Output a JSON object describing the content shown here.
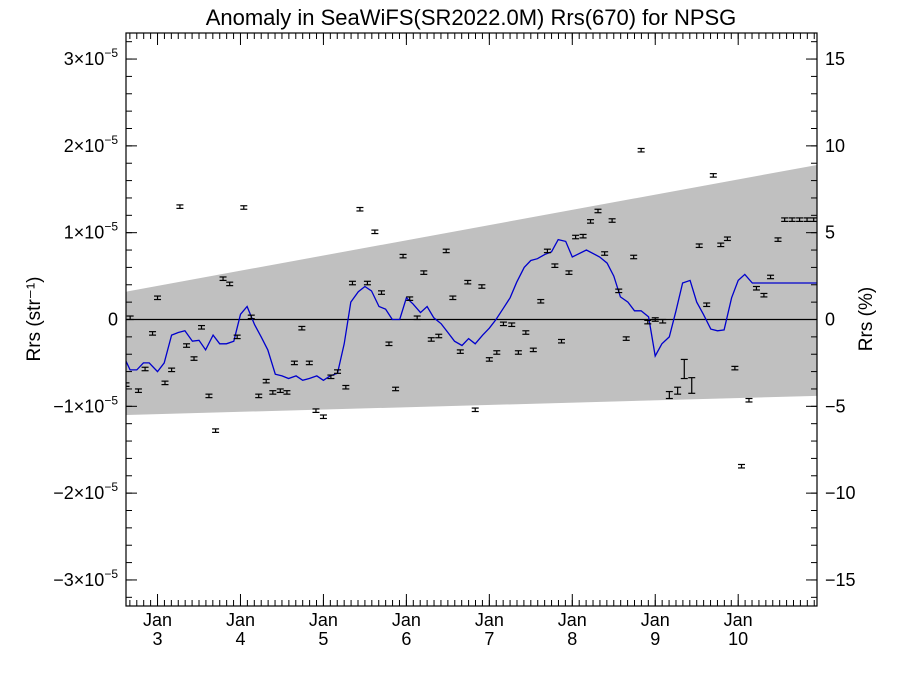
{
  "chart_data": {
    "type": "line",
    "title": "Anomaly in SeaWiFS(SR2022.0M) Rrs(670) for NPSG",
    "ylabel_left": "Rrs (str⁻¹)",
    "ylabel_right": "Rrs (%)",
    "xlim": [
      2002.62,
      2010.95
    ],
    "ylim": [
      -3.3e-05,
      3.3e-05
    ],
    "ylim_right": [
      -16.5,
      16.5
    ],
    "x_ticks": [
      {
        "value": 2003,
        "month": "Jan",
        "year": "3"
      },
      {
        "value": 2004,
        "month": "Jan",
        "year": "4"
      },
      {
        "value": 2005,
        "month": "Jan",
        "year": "5"
      },
      {
        "value": 2006,
        "month": "Jan",
        "year": "6"
      },
      {
        "value": 2007,
        "month": "Jan",
        "year": "7"
      },
      {
        "value": 2008,
        "month": "Jan",
        "year": "8"
      },
      {
        "value": 2009,
        "month": "Jan",
        "year": "9"
      },
      {
        "value": 2010,
        "month": "Jan",
        "year": "10"
      }
    ],
    "y_ticks_left": [
      {
        "value": 3e-05,
        "mant": "3",
        "exp": "−5"
      },
      {
        "value": 2e-05,
        "mant": "2",
        "exp": "−5"
      },
      {
        "value": 1e-05,
        "mant": "1",
        "exp": "−5"
      },
      {
        "value": 0,
        "mant": "0",
        "exp": ""
      },
      {
        "value": -1e-05,
        "mant": "−1",
        "exp": "−5"
      },
      {
        "value": -2e-05,
        "mant": "−2",
        "exp": "−5"
      },
      {
        "value": -3e-05,
        "mant": "−3",
        "exp": "−5"
      }
    ],
    "y_ticks_right": [
      {
        "value": 15,
        "label": "15"
      },
      {
        "value": 10,
        "label": "10"
      },
      {
        "value": 5,
        "label": "5"
      },
      {
        "value": 0,
        "label": "0"
      },
      {
        "value": -5,
        "label": "−5"
      },
      {
        "value": -10,
        "label": "−10"
      },
      {
        "value": -15,
        "label": "−15"
      }
    ],
    "band": {
      "x": [
        2002.62,
        2010.95
      ],
      "upper": [
        3.2e-06,
        1.78e-05
      ],
      "lower": [
        -1.1e-05,
        -8.8e-06
      ],
      "color": "#c0c0c0"
    },
    "points": {
      "x": [
        2002.62,
        2002.67,
        2002.77,
        2002.85,
        2002.94,
        2003.0,
        2003.09,
        2003.17,
        2003.27,
        2003.35,
        2003.44,
        2003.53,
        2003.62,
        2003.7,
        2003.79,
        2003.87,
        2003.96,
        2004.04,
        2004.13,
        2004.22,
        2004.31,
        2004.39,
        2004.48,
        2004.56,
        2004.65,
        2004.74,
        2004.83,
        2004.91,
        2005.0,
        2005.09,
        2005.17,
        2005.27,
        2005.35,
        2005.44,
        2005.53,
        2005.62,
        2005.7,
        2005.79,
        2005.87,
        2005.96,
        2006.04,
        2006.13,
        2006.21,
        2006.3,
        2006.39,
        2006.48,
        2006.56,
        2006.65,
        2006.74,
        2006.83,
        2006.91,
        2007.0,
        2007.09,
        2007.17,
        2007.27,
        2007.35,
        2007.44,
        2007.53,
        2007.62,
        2007.7,
        2007.79,
        2007.87,
        2007.96,
        2008.04,
        2008.13,
        2008.22,
        2008.31,
        2008.39,
        2008.48,
        2008.56,
        2008.65,
        2008.74,
        2008.83,
        2008.91,
        2009.0,
        2009.09,
        2009.17,
        2009.27,
        2009.35,
        2009.44,
        2009.53,
        2009.62,
        2009.7,
        2009.79,
        2009.87,
        2009.96,
        2010.04,
        2010.13,
        2010.22,
        2010.31,
        2010.39,
        2010.48,
        2010.56,
        2010.65,
        2010.74,
        2010.83,
        2010.91
      ],
      "y": [
        -7.5e-06,
        2e-07,
        -8.2e-06,
        -5.7e-06,
        -1.6e-06,
        2.5e-06,
        -7.3e-06,
        -5.8e-06,
        1.3e-05,
        -3e-06,
        -4.5e-06,
        -9e-07,
        -8.8e-06,
        -1.28e-05,
        4.7e-06,
        4.1e-06,
        -2e-06,
        1.29e-05,
        3e-07,
        -8.8e-06,
        -7.1e-06,
        -8.4e-06,
        -8.2e-06,
        -8.4e-06,
        -5e-06,
        -1e-06,
        -5e-06,
        -1.05e-05,
        -1.12e-05,
        -6.6e-06,
        -6e-06,
        -7.8e-06,
        4.2e-06,
        1.27e-05,
        4.2e-06,
        1.01e-05,
        3.1e-06,
        -2.8e-06,
        -8e-06,
        7.3e-06,
        2.4e-06,
        2e-07,
        5.4e-06,
        -2.3e-06,
        -1.9e-06,
        7.9e-06,
        2.5e-06,
        -3.7e-06,
        4.3e-06,
        -1.04e-05,
        3.8e-06,
        -4.6e-06,
        -3.8e-06,
        -5e-07,
        -6e-07,
        -3.8e-06,
        -1.5e-06,
        -3.5e-06,
        2.1e-06,
        7.9e-06,
        6.2e-06,
        -2.5e-06,
        5.4e-06,
        9.5e-06,
        9.6e-06,
        1.13e-05,
        1.25e-05,
        7.6e-06,
        1.14e-05,
        3.3e-06,
        -2.2e-06,
        7.2e-06,
        1.95e-05,
        -3e-07,
        0,
        -2e-07,
        -8.7e-06,
        -8.2e-06,
        -5.7e-06,
        -7.6e-06,
        8.5e-06,
        1.7e-06,
        1.66e-05,
        8.6e-06,
        9.3e-06,
        -5.6e-06,
        -1.69e-05,
        -9.3e-06,
        3.6e-06,
        2.8e-06,
        4.9e-06,
        9.2e-06,
        1.15e-05,
        1.15e-05,
        1.15e-05,
        1.15e-05,
        1.15e-05
      ],
      "err": [
        2e-07,
        2e-07,
        2e-07,
        2e-07,
        2e-07,
        2e-07,
        2e-07,
        2e-07,
        2e-07,
        2e-07,
        2e-07,
        2e-07,
        2e-07,
        2e-07,
        2e-07,
        2e-07,
        2e-07,
        2e-07,
        2e-07,
        2e-07,
        2e-07,
        2e-07,
        2e-07,
        2e-07,
        2e-07,
        2e-07,
        2e-07,
        2e-07,
        2e-07,
        2e-07,
        2e-07,
        2e-07,
        2e-07,
        2e-07,
        2e-07,
        2e-07,
        2e-07,
        2e-07,
        2e-07,
        2e-07,
        2e-07,
        2e-07,
        2e-07,
        2e-07,
        2e-07,
        2e-07,
        2e-07,
        2e-07,
        2e-07,
        2e-07,
        2e-07,
        2e-07,
        2e-07,
        2e-07,
        2e-07,
        2e-07,
        2e-07,
        2e-07,
        2e-07,
        2e-07,
        2e-07,
        2e-07,
        2e-07,
        2e-07,
        2e-07,
        2e-07,
        2e-07,
        2e-07,
        2e-07,
        2e-07,
        2e-07,
        2e-07,
        2e-07,
        2e-07,
        2e-07,
        2e-07,
        4e-07,
        4e-07,
        1.1e-06,
        9e-07,
        2e-07,
        2e-07,
        2e-07,
        2e-07,
        2e-07,
        2e-07,
        2e-07,
        2e-07,
        2e-07,
        2e-07,
        2e-07,
        2e-07,
        2e-07,
        2e-07,
        2e-07,
        2e-07,
        2e-07
      ],
      "color": "#000000"
    },
    "series": [
      {
        "color": "#0000cc",
        "x": [
          2002.62,
          2002.67,
          2002.75,
          2002.83,
          2002.9,
          2003.0,
          2003.08,
          2003.17,
          2003.25,
          2003.33,
          2003.42,
          2003.5,
          2003.58,
          2003.67,
          2003.75,
          2003.83,
          2003.92,
          2004.0,
          2004.08,
          2004.17,
          2004.25,
          2004.33,
          2004.42,
          2004.5,
          2004.58,
          2004.67,
          2004.75,
          2004.83,
          2004.92,
          2005.0,
          2005.08,
          2005.17,
          2005.25,
          2005.33,
          2005.42,
          2005.5,
          2005.58,
          2005.67,
          2005.75,
          2005.83,
          2005.92,
          2006.0,
          2006.08,
          2006.17,
          2006.25,
          2006.33,
          2006.42,
          2006.5,
          2006.58,
          2006.67,
          2006.75,
          2006.83,
          2006.92,
          2007.0,
          2007.08,
          2007.17,
          2007.25,
          2007.33,
          2007.42,
          2007.5,
          2007.58,
          2007.67,
          2007.75,
          2007.83,
          2007.92,
          2008.0,
          2008.17,
          2008.33,
          2008.42,
          2008.5,
          2008.58,
          2008.67,
          2008.75,
          2008.83,
          2008.92,
          2009.0,
          2009.08,
          2009.17,
          2009.25,
          2009.33,
          2009.42,
          2009.5,
          2009.58,
          2009.67,
          2009.75,
          2009.83,
          2009.92,
          2010.0,
          2010.08,
          2010.17,
          2010.25,
          2010.33,
          2010.42,
          2010.5,
          2010.58,
          2010.67,
          2010.75,
          2010.83,
          2010.92,
          2010.95
        ],
        "y": [
          -4.8e-06,
          -5.8e-06,
          -5.8e-06,
          -5e-06,
          -5e-06,
          -6e-06,
          -5e-06,
          -1.8e-06,
          -1.5e-06,
          -1.3e-06,
          -2.5e-06,
          -2.4e-06,
          -3.5e-06,
          -1.8e-06,
          -2.8e-06,
          -2.8e-06,
          -2.5e-06,
          6e-07,
          1.5e-06,
          -6e-07,
          -2e-06,
          -3.5e-06,
          -6.3e-06,
          -6.5e-06,
          -6.8e-06,
          -6.5e-06,
          -7e-06,
          -6.8e-06,
          -6.5e-06,
          -7e-06,
          -6.5e-06,
          -6.2e-06,
          -2.8e-06,
          2e-06,
          3.2e-06,
          3.8e-06,
          3.3e-06,
          1.5e-06,
          1.2e-06,
          0,
          0,
          2.5e-06,
          1.8e-06,
          8e-07,
          1.5e-06,
          2e-07,
          -5e-07,
          -1.5e-06,
          -2.5e-06,
          -3e-06,
          -2.2e-06,
          -2.8e-06,
          -1.8e-06,
          -1e-06,
          0,
          1.3e-06,
          2.5e-06,
          4.3e-06,
          6e-06,
          6.8e-06,
          7e-06,
          7.5e-06,
          7.8e-06,
          9.2e-06,
          9e-06,
          7.2e-06,
          8e-06,
          7.2e-06,
          6.5e-06,
          5e-06,
          2.6e-06,
          2e-06,
          1e-06,
          1e-06,
          3e-07,
          -4.2e-06,
          -2.8e-06,
          -2e-06,
          1e-06,
          4.2e-06,
          4.5e-06,
          2e-06,
          6e-07,
          -1.1e-06,
          -1.3e-06,
          -1.2e-06,
          2.5e-06,
          4.5e-06,
          5.2e-06,
          4.2e-06,
          4.2e-06,
          4.2e-06,
          4.2e-06,
          4.2e-06,
          4.2e-06,
          4.2e-06,
          4.2e-06,
          4.2e-06,
          4.2e-06,
          4.2e-06
        ]
      }
    ],
    "zero_line": true,
    "grid": false
  }
}
